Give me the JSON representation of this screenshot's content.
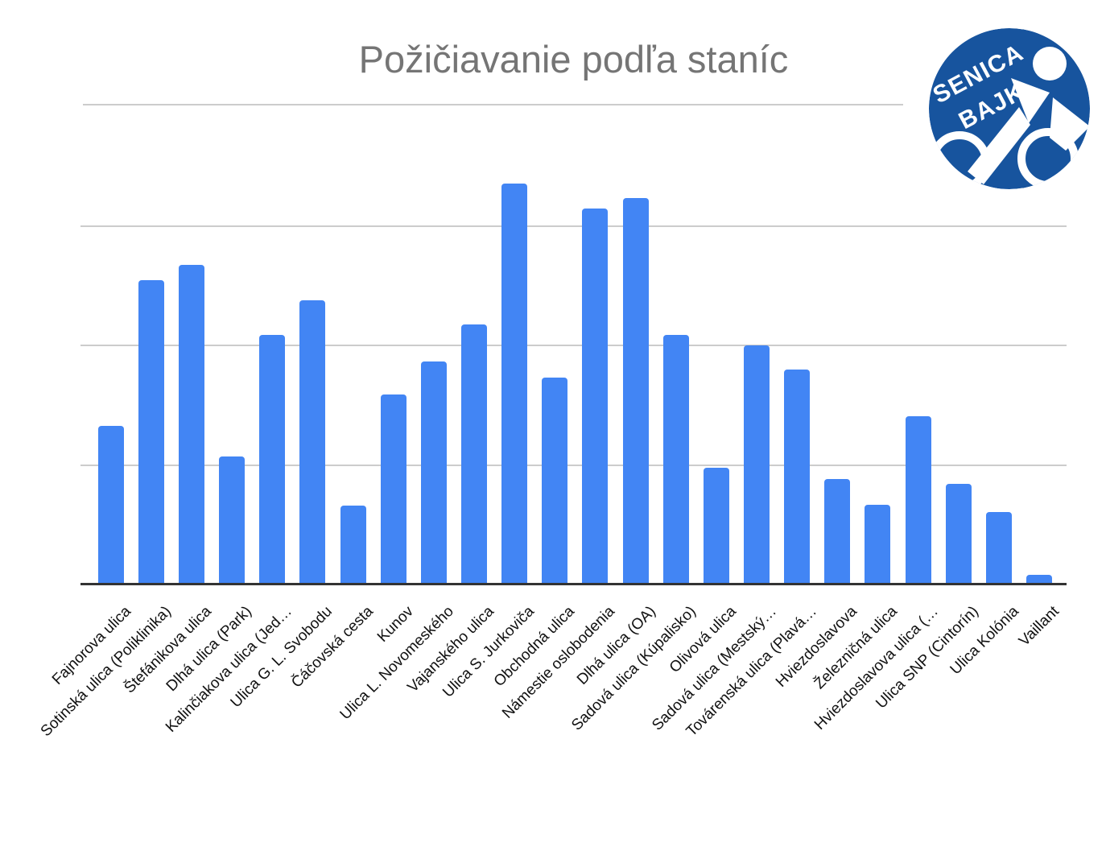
{
  "header": {
    "title": "Požičiavanie podľa staníc"
  },
  "logo": {
    "brand_line1": "SENICA",
    "brand_line2": "BAJK",
    "color": "#17549E"
  },
  "colors": {
    "bar": "#4285F4",
    "gridline": "#cccccc",
    "axis_line": "#333333",
    "title": "#757575",
    "axis_label": "#111111",
    "background": "#ffffff"
  },
  "chart_data": {
    "type": "bar",
    "title": "Požičiavanie podľa staníc",
    "xlabel": "",
    "ylabel": "",
    "legend": "none",
    "grid": true,
    "x_labels_rotation_deg": -45,
    "y_axis": {
      "labels_visible": false,
      "min": 0,
      "max": 400,
      "gridline_interval": 100,
      "note": "y-axis is unlabeled in the image; values estimated in gridline units (1 gridline = 100)"
    },
    "categories": [
      "Fajnorova ulica",
      "Sotinská ulica (Poliklinika)",
      "Štefánikova ulica",
      "Dlhá ulica (Park)",
      "Kalinčiakova ulica (Jed…",
      "Ulica G. L. Svobodu",
      "Čáčovská cesta",
      "Kunov",
      "Ulica L. Novomeského",
      "Vajanského ulica",
      "Ulica S. Jurkoviča",
      "Obchodná ulica",
      "Námestie oslobodenia",
      "Dlhá ulica (OA)",
      "Sadová ulica (Kúpalisko)",
      "Olivová ulica",
      "Sadová ulica (Mestský…",
      "Továrenská ulica (Plavá…",
      "Hviezdoslavova",
      "Železničná ulica",
      "Hviezdoslavova ulica (…",
      "Ulica SNP (Cintorín)",
      "Ulica Kolónia",
      "Vaillant"
    ],
    "values": [
      133,
      255,
      268,
      107,
      209,
      238,
      66,
      159,
      187,
      218,
      336,
      173,
      315,
      324,
      209,
      98,
      200,
      180,
      88,
      67,
      141,
      84,
      61,
      8
    ]
  }
}
